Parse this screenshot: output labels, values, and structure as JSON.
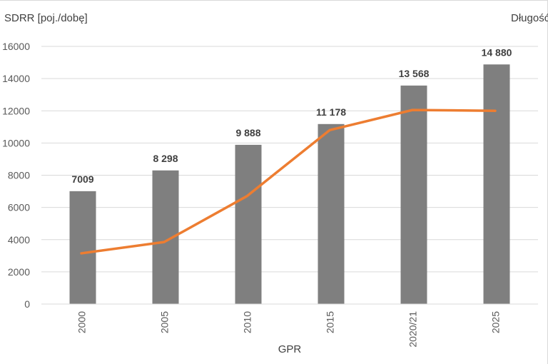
{
  "chart_data": {
    "type": "bar",
    "categories": [
      "2000",
      "2005",
      "2010",
      "2015",
      "2020/21",
      "2025"
    ],
    "ylabel": "SDRR [poj./dobę]",
    "y2label": "Długość",
    "xlabel": "GPR",
    "ylim": [
      0,
      16000
    ],
    "yticks": [
      "0",
      "2000",
      "4000",
      "6000",
      "8000",
      "10000",
      "12000",
      "14000",
      "16000"
    ],
    "grid": true,
    "series": [
      {
        "type": "bar",
        "color": "#7f7f7f",
        "values": [
          7009,
          8298,
          9888,
          11178,
          13568,
          14880
        ],
        "labels": [
          "7009",
          "8 298",
          "9 888",
          "11 178",
          "13 568",
          "14 880"
        ]
      },
      {
        "type": "line",
        "color": "#ed7d31",
        "axis": "secondary",
        "values": [
          3150,
          3850,
          6700,
          10800,
          12050,
          12000
        ]
      }
    ]
  }
}
